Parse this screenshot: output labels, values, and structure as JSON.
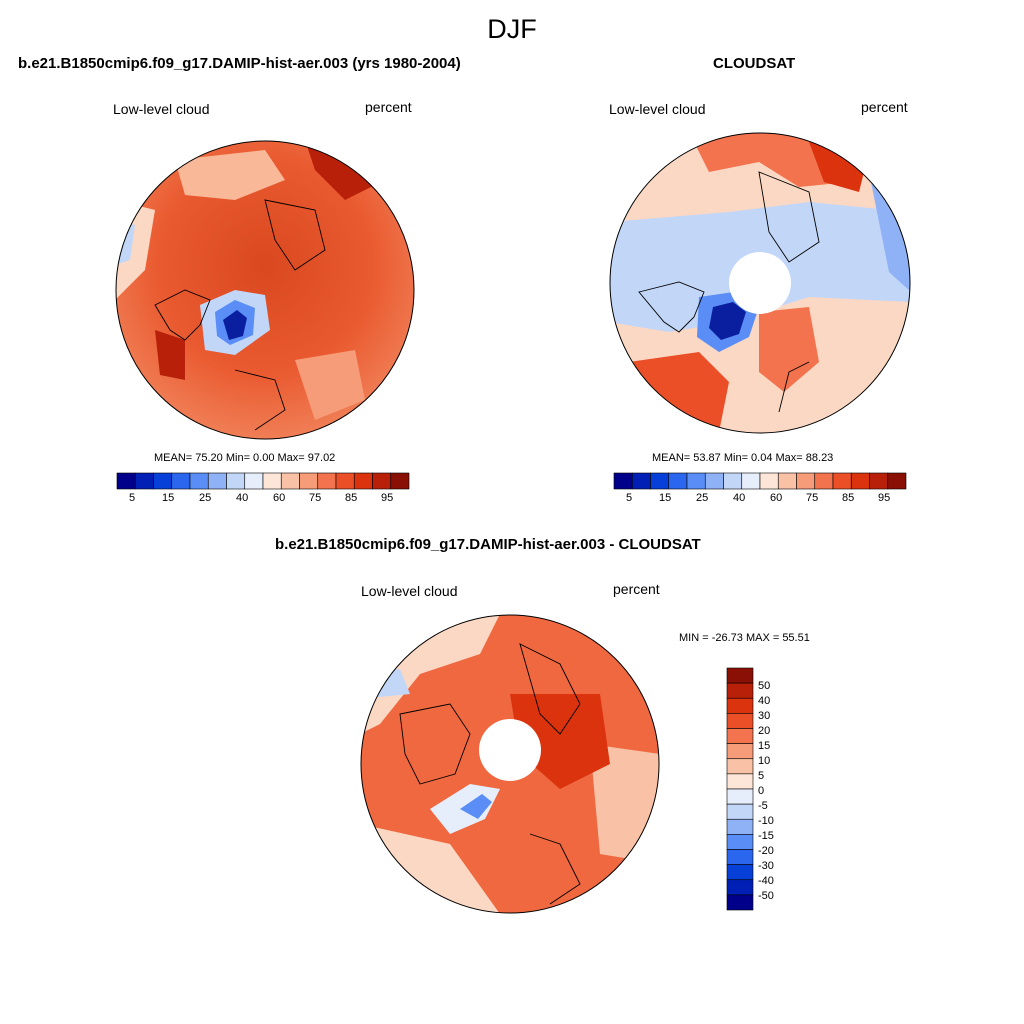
{
  "figure": {
    "suptitle": "DJF"
  },
  "panels": [
    {
      "id": "model",
      "title": "b.e21.B1850cmip6.f09_g17.DAMIP-hist-aer.003 (yrs 1980-2004)",
      "left_label": "Low-level cloud",
      "right_label": "percent",
      "stats": "MEAN=  75.20  Min=    0.00  Max=  97.02",
      "mean": 75.2,
      "min": 0.0,
      "max": 97.02,
      "hole": false
    },
    {
      "id": "obs",
      "title": "CLOUDSAT",
      "left_label": "Low-level cloud",
      "right_label": "percent",
      "stats": "MEAN=  53.87  Min=   0.04  Max=  88.23",
      "mean": 53.87,
      "min": 0.04,
      "max": 88.23,
      "hole": true
    },
    {
      "id": "diff",
      "title": "b.e21.B1850cmip6.f09_g17.DAMIP-hist-aer.003 - CLOUDSAT",
      "left_label": "Low-level cloud",
      "right_label": "percent",
      "stats": "MIN = -26.73 MAX =  55.51",
      "min": -26.73,
      "max": 55.51,
      "hole": true
    }
  ],
  "colorbar_abs": {
    "labels": [
      "5",
      "15",
      "25",
      "40",
      "60",
      "75",
      "85",
      "95"
    ],
    "colors": [
      "#00008a",
      "#0020b5",
      "#0640d8",
      "#2a66ee",
      "#5a8df5",
      "#8fb1f6",
      "#c2d6f8",
      "#e6eefc",
      "#fde6d8",
      "#f9c2a6",
      "#f79c78",
      "#f2734e",
      "#eb4f28",
      "#dc330f",
      "#b9200a",
      "#8a0f05"
    ]
  },
  "colorbar_diff": {
    "labels": [
      "50",
      "40",
      "30",
      "20",
      "15",
      "10",
      "5",
      "0",
      "-5",
      "-10",
      "-15",
      "-20",
      "-30",
      "-40",
      "-50"
    ],
    "colors": [
      "#8a0f05",
      "#b9200a",
      "#dc330f",
      "#eb4f28",
      "#f2734e",
      "#f79c78",
      "#f9c2a6",
      "#fde6d8",
      "#e6eefc",
      "#c2d6f8",
      "#8fb1f6",
      "#5a8df5",
      "#2a66ee",
      "#0640d8",
      "#0020b5",
      "#00008a"
    ]
  },
  "colors": {
    "high": "#e8542c",
    "mid": "#f79c78",
    "low": "#c2d6f8",
    "very_low": "#0a28b0"
  }
}
